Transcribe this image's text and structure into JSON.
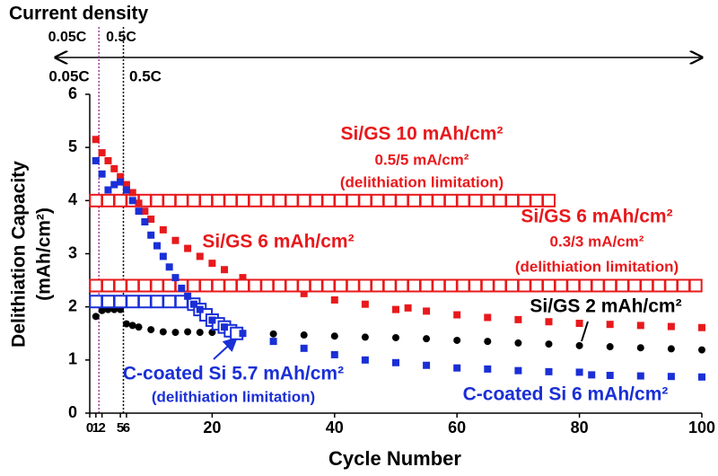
{
  "chart_data": {
    "type": "scatter",
    "xlabel": "Cycle Number",
    "ylabel": [
      "Delithiation Capacity",
      "(mAh/cm²)"
    ],
    "xlim": [
      0,
      100
    ],
    "ylim": [
      0,
      6
    ],
    "xticks": [
      0,
      1,
      2,
      5,
      6,
      20,
      40,
      60,
      80,
      100
    ],
    "yticks": [
      0,
      1,
      2,
      3,
      4,
      5,
      6
    ],
    "vlines": [
      {
        "value": 1.5,
        "color": "#a040a0"
      },
      {
        "value": 5.5,
        "color": "#000000"
      }
    ],
    "series": [
      {
        "name": "Si/GS 10 mAh/cm²",
        "color": "#e8191c",
        "marker": "square",
        "filled": false,
        "x": [
          1,
          3,
          5,
          7,
          9,
          11,
          13,
          15,
          17,
          19,
          21,
          23,
          25,
          27,
          29,
          31,
          33,
          35,
          37,
          39,
          41,
          43,
          45,
          47,
          49,
          51,
          53,
          55,
          57,
          59,
          61,
          63,
          65,
          67,
          69,
          71,
          73,
          75
        ],
        "values": [
          4,
          4,
          4,
          4,
          4,
          4,
          4,
          4,
          4,
          4,
          4,
          4,
          4,
          4,
          4,
          4,
          4,
          4,
          4,
          4,
          4,
          4,
          4,
          4,
          4,
          4,
          4,
          4,
          4,
          4,
          4,
          4,
          4,
          4,
          4,
          4,
          4,
          4
        ]
      },
      {
        "name": "Si/GS 6 mAh/cm²",
        "color": "#e8191c",
        "marker": "square",
        "filled": true,
        "x": [
          1,
          2,
          3,
          4,
          5,
          6,
          7,
          8,
          9,
          10,
          12,
          14,
          16,
          18,
          20,
          22,
          25,
          28,
          30,
          35,
          40,
          45,
          50,
          52,
          55,
          60,
          65,
          70,
          75,
          80,
          85,
          90,
          95,
          100
        ],
        "values": [
          5.15,
          4.9,
          4.75,
          4.6,
          4.45,
          4.3,
          4.15,
          3.95,
          3.8,
          3.65,
          3.45,
          3.25,
          3.1,
          2.95,
          2.82,
          2.7,
          2.55,
          2.45,
          2.38,
          2.25,
          2.13,
          2.05,
          1.95,
          1.98,
          1.92,
          1.85,
          1.8,
          1.76,
          1.72,
          1.69,
          1.67,
          1.65,
          1.63,
          1.61
        ]
      },
      {
        "name": "Si/GS 6 mAh/cm²",
        "color": "#e8191c",
        "marker": "square",
        "filled": false,
        "x": [
          1,
          3,
          5,
          7,
          9,
          11,
          13,
          15,
          17,
          19,
          21,
          23,
          25,
          27,
          29,
          31,
          33,
          35,
          37,
          39,
          41,
          43,
          45,
          47,
          49,
          51,
          53,
          55,
          57,
          59,
          61,
          63,
          65,
          67,
          69,
          71,
          73,
          75,
          77,
          79,
          81,
          83,
          85,
          87,
          89,
          91,
          93,
          95,
          97,
          99
        ],
        "values": [
          2.4,
          2.4,
          2.4,
          2.4,
          2.4,
          2.4,
          2.4,
          2.4,
          2.4,
          2.4,
          2.4,
          2.4,
          2.4,
          2.4,
          2.4,
          2.4,
          2.4,
          2.4,
          2.4,
          2.4,
          2.4,
          2.4,
          2.4,
          2.4,
          2.4,
          2.4,
          2.4,
          2.4,
          2.4,
          2.4,
          2.4,
          2.4,
          2.4,
          2.4,
          2.4,
          2.4,
          2.4,
          2.4,
          2.4,
          2.4,
          2.4,
          2.4,
          2.4,
          2.4,
          2.4,
          2.4,
          2.4,
          2.4,
          2.4,
          2.4
        ]
      },
      {
        "name": "Si/GS 2 mAh/cm²",
        "color": "#000000",
        "marker": "circle",
        "filled": true,
        "x": [
          1,
          2,
          3,
          4,
          5,
          6,
          7,
          8,
          10,
          12,
          14,
          16,
          18,
          20,
          25,
          30,
          35,
          40,
          45,
          50,
          55,
          60,
          65,
          70,
          75,
          80,
          85,
          90,
          95,
          100
        ],
        "values": [
          1.82,
          1.93,
          1.95,
          1.95,
          1.95,
          1.68,
          1.65,
          1.62,
          1.57,
          1.53,
          1.52,
          1.53,
          1.52,
          1.52,
          1.5,
          1.49,
          1.47,
          1.45,
          1.43,
          1.42,
          1.4,
          1.37,
          1.35,
          1.32,
          1.3,
          1.27,
          1.25,
          1.23,
          1.21,
          1.19
        ]
      },
      {
        "name": "C-coated Si 5.7 mAh/cm²",
        "color": "#1a2fd6",
        "marker": "square",
        "filled": false,
        "x": [
          1,
          3,
          5,
          7,
          9,
          11,
          13,
          15,
          17,
          18,
          19,
          20,
          21,
          22,
          23,
          24
        ],
        "values": [
          2.1,
          2.1,
          2.1,
          2.1,
          2.1,
          2.1,
          2.1,
          2.1,
          2.05,
          1.95,
          1.85,
          1.75,
          1.68,
          1.62,
          1.55,
          1.5
        ]
      },
      {
        "name": "C-coated Si 6 mAh/cm²",
        "color": "#1a2fd6",
        "marker": "square",
        "filled": true,
        "x": [
          1,
          2,
          3,
          4,
          5,
          6,
          7,
          8,
          9,
          10,
          11,
          12,
          13,
          14,
          15,
          16,
          17,
          18,
          20,
          22,
          25,
          30,
          35,
          40,
          45,
          50,
          55,
          60,
          65,
          70,
          75,
          80,
          82,
          85,
          90,
          95,
          100
        ],
        "values": [
          4.75,
          4.5,
          4.2,
          4.3,
          4.35,
          4.2,
          4.0,
          3.8,
          3.6,
          3.35,
          3.15,
          2.95,
          2.75,
          2.55,
          2.35,
          2.2,
          2.05,
          1.95,
          1.75,
          1.62,
          1.5,
          1.35,
          1.22,
          1.1,
          1.0,
          0.95,
          0.9,
          0.85,
          0.83,
          0.8,
          0.78,
          0.77,
          0.72,
          0.71,
          0.7,
          0.69,
          0.68
        ]
      }
    ],
    "annotations": [
      {
        "text": "Current density",
        "color": "#000000"
      },
      {
        "text": "0.05C",
        "color": "#000000"
      },
      {
        "text": "0.5C",
        "color": "#000000"
      },
      {
        "text": "0.05C",
        "color": "#000000"
      },
      {
        "text": "0.5C",
        "color": "#000000"
      },
      {
        "text": "0.5/5 mA/cm²",
        "color": "#e8191c"
      },
      {
        "text": "(delithiation limitation)",
        "color": "#e8191c"
      },
      {
        "text": "0.3/3 mA/cm²",
        "color": "#e8191c"
      },
      {
        "text": "(delithiation limitation)",
        "color": "#e8191c"
      },
      {
        "text": "(delithiation limitation)",
        "color": "#1a2fd6"
      }
    ]
  }
}
